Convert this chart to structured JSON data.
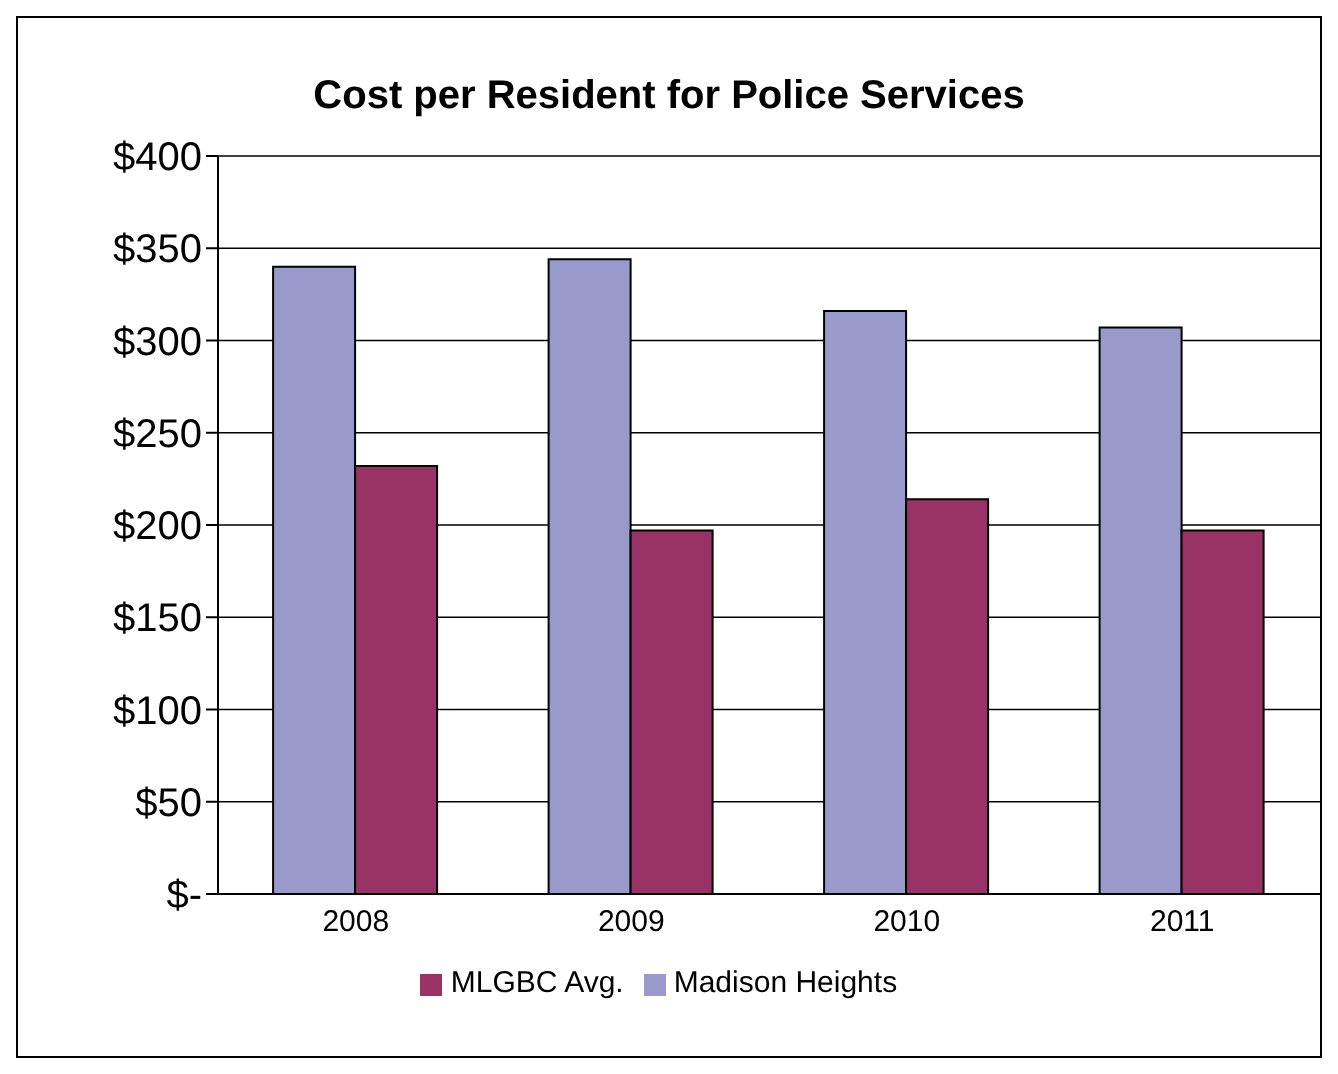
{
  "chart_data": {
    "type": "bar",
    "title": "Cost per Resident for Police Services",
    "categories": [
      "2008",
      "2009",
      "2010",
      "2011"
    ],
    "series": [
      {
        "name": "Madison Heights",
        "color": "#9999cc",
        "values": [
          340,
          344,
          316,
          307
        ]
      },
      {
        "name": "MLGBC Avg.",
        "color": "#993366",
        "values": [
          232,
          197,
          214,
          197
        ]
      }
    ],
    "ylim": [
      0,
      400
    ],
    "yticks": [
      {
        "value": 0,
        "label": "$-"
      },
      {
        "value": 50,
        "label": "$50"
      },
      {
        "value": 100,
        "label": "$100"
      },
      {
        "value": 150,
        "label": "$150"
      },
      {
        "value": 200,
        "label": "$200"
      },
      {
        "value": 250,
        "label": "$250"
      },
      {
        "value": 300,
        "label": "$300"
      },
      {
        "value": 350,
        "label": "$350"
      },
      {
        "value": 400,
        "label": "$400"
      }
    ],
    "grid": "y",
    "legend": "bottom"
  }
}
